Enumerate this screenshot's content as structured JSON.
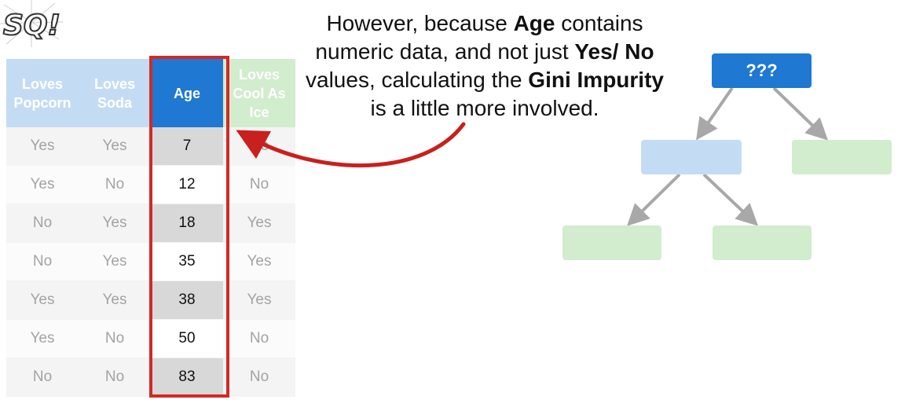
{
  "logo": {
    "text": "SQ!"
  },
  "table": {
    "headers": [
      {
        "line1": "Loves",
        "line2": "Popcorn",
        "line3": ""
      },
      {
        "line1": "Loves",
        "line2": "Soda",
        "line3": ""
      },
      {
        "line1": "Age",
        "line2": "",
        "line3": ""
      },
      {
        "line1": "Loves",
        "line2": "Cool As",
        "line3": "Ice"
      }
    ],
    "rows": [
      [
        "Yes",
        "Yes",
        "7",
        "No"
      ],
      [
        "Yes",
        "No",
        "12",
        "No"
      ],
      [
        "No",
        "Yes",
        "18",
        "Yes"
      ],
      [
        "No",
        "Yes",
        "35",
        "Yes"
      ],
      [
        "Yes",
        "Yes",
        "38",
        "Yes"
      ],
      [
        "Yes",
        "No",
        "50",
        "No"
      ],
      [
        "No",
        "No",
        "83",
        "No"
      ]
    ]
  },
  "caption": {
    "p1": "However, because ",
    "b1": "Age",
    "p2": " contains numeric data, and not just ",
    "b2": "Yes/ No",
    "p3": " values, calculating the ",
    "b3": "Gini Impurity",
    "p4": " is a little more involved."
  },
  "tree": {
    "root_label": "???"
  },
  "colors": {
    "highlight_box": "#d12a26",
    "arrow": "#c8201c",
    "root_node": "#1f78d1",
    "blue_leaf": "#c4dcf3",
    "green_leaf": "#d2ecce",
    "edge": "#a8a8a8"
  }
}
